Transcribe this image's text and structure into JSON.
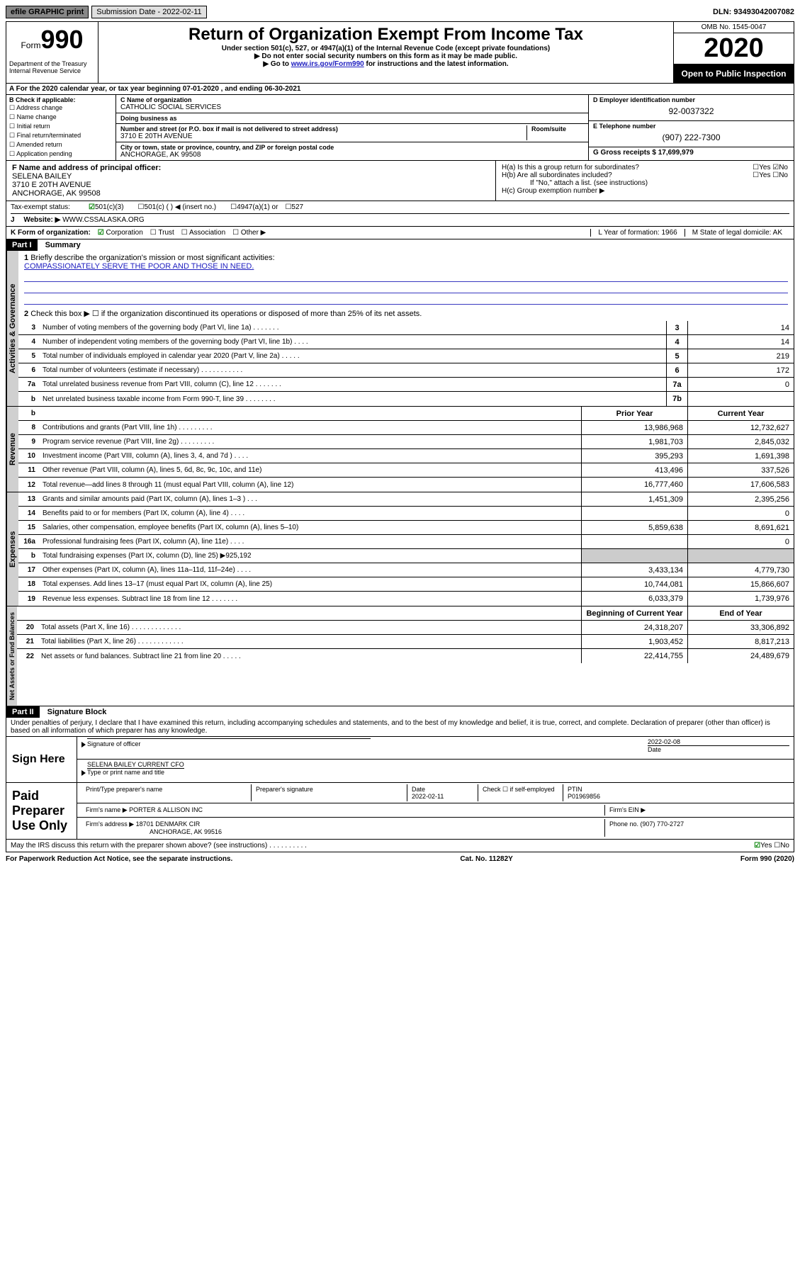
{
  "topbar": {
    "efile": "efile GRAPHIC print",
    "submission_label": "Submission Date - 2022-02-11",
    "dln": "DLN: 93493042007082"
  },
  "header": {
    "form_prefix": "Form",
    "form_number": "990",
    "dept": "Department of the Treasury\nInternal Revenue Service",
    "title": "Return of Organization Exempt From Income Tax",
    "subtitle": "Under section 501(c), 527, or 4947(a)(1) of the Internal Revenue Code (except private foundations)",
    "note1": "▶ Do not enter social security numbers on this form as it may be made public.",
    "note2_pre": "▶ Go to ",
    "note2_link": "www.irs.gov/Form990",
    "note2_post": " for instructions and the latest information.",
    "omb": "OMB No. 1545-0047",
    "year": "2020",
    "open_public": "Open to Public Inspection"
  },
  "period": {
    "line_a": "A For the 2020 calendar year, or tax year beginning 07-01-2020   , and ending 06-30-2021"
  },
  "box_b": {
    "label": "B Check if applicable:",
    "items": [
      "Address change",
      "Name change",
      "Initial return",
      "Final return/terminated",
      "Amended return",
      "Application pending"
    ]
  },
  "box_c": {
    "name_label": "C Name of organization",
    "name": "CATHOLIC SOCIAL SERVICES",
    "dba_label": "Doing business as",
    "dba": "",
    "street_label": "Number and street (or P.O. box if mail is not delivered to street address)",
    "room_label": "Room/suite",
    "street": "3710 E 20TH AVENUE",
    "city_label": "City or town, state or province, country, and ZIP or foreign postal code",
    "city": "ANCHORAGE, AK  99508"
  },
  "box_d": {
    "ein_label": "D Employer identification number",
    "ein": "92-0037322",
    "phone_label": "E Telephone number",
    "phone": "(907) 222-7300",
    "gross_label": "G Gross receipts $ 17,699,979"
  },
  "box_f": {
    "label": "F Name and address of principal officer:",
    "name": "SELENA BAILEY",
    "street": "3710 E 20TH AVENUE",
    "city": "ANCHORAGE, AK  99508"
  },
  "box_h": {
    "a": "H(a)  Is this a group return for subordinates?",
    "b": "H(b)  Are all subordinates included?",
    "b_note": "If \"No,\" attach a list. (see instructions)",
    "c": "H(c)  Group exemption number ▶",
    "yes": "Yes",
    "no": "No"
  },
  "tax_exempt": {
    "label": "Tax-exempt status:",
    "opt1": "501(c)(3)",
    "opt2": "501(c) (  ) ◀ (insert no.)",
    "opt3": "4947(a)(1) or",
    "opt4": "527"
  },
  "website": {
    "label_j": "J",
    "label": "Website: ▶",
    "value": "WWW.CSSALASKA.ORG"
  },
  "box_k": {
    "label": "K Form of organization:",
    "corp": "Corporation",
    "trust": "Trust",
    "assoc": "Association",
    "other": "Other ▶"
  },
  "box_l": {
    "label": "L Year of formation: 1966"
  },
  "box_m": {
    "label": "M State of legal domicile: AK"
  },
  "part1": {
    "header": "Part I",
    "title": "Summary",
    "q1": "Briefly describe the organization's mission or most significant activities:",
    "mission": "COMPASSIONATELY SERVE THE POOR AND THOSE IN NEED.",
    "q2": "Check this box ▶ ☐  if the organization discontinued its operations or disposed of more than 25% of its net assets.",
    "lines": [
      {
        "n": "3",
        "d": "Number of voting members of the governing body (Part VI, line 1a)   .   .   .   .   .   .   .",
        "b": "3",
        "v": "14"
      },
      {
        "n": "4",
        "d": "Number of independent voting members of the governing body (Part VI, line 1b)   .   .   .   .",
        "b": "4",
        "v": "14"
      },
      {
        "n": "5",
        "d": "Total number of individuals employed in calendar year 2020 (Part V, line 2a)   .   .   .   .   .",
        "b": "5",
        "v": "219"
      },
      {
        "n": "6",
        "d": "Total number of volunteers (estimate if necessary)   .   .   .   .   .   .   .   .   .   .   .",
        "b": "6",
        "v": "172"
      },
      {
        "n": "7a",
        "d": "Total unrelated business revenue from Part VIII, column (C), line 12   .   .   .   .   .   .   .",
        "b": "7a",
        "v": "0"
      },
      {
        "n": "b",
        "d": "Net unrelated business taxable income from Form 990-T, line 39   .   .   .   .   .   .   .   .",
        "b": "7b",
        "v": ""
      }
    ],
    "tab_gov": "Activities & Governance"
  },
  "revenue": {
    "tab": "Revenue",
    "header_prior": "Prior Year",
    "header_current": "Current Year",
    "lines": [
      {
        "n": "8",
        "d": "Contributions and grants (Part VIII, line 1h)   .   .   .   .   .   .   .   .   .",
        "p": "13,986,968",
        "c": "12,732,627"
      },
      {
        "n": "9",
        "d": "Program service revenue (Part VIII, line 2g)   .   .   .   .   .   .   .   .   .",
        "p": "1,981,703",
        "c": "2,845,032"
      },
      {
        "n": "10",
        "d": "Investment income (Part VIII, column (A), lines 3, 4, and 7d )   .   .   .   .",
        "p": "395,293",
        "c": "1,691,398"
      },
      {
        "n": "11",
        "d": "Other revenue (Part VIII, column (A), lines 5, 6d, 8c, 9c, 10c, and 11e)",
        "p": "413,496",
        "c": "337,526"
      },
      {
        "n": "12",
        "d": "Total revenue—add lines 8 through 11 (must equal Part VIII, column (A), line 12)",
        "p": "16,777,460",
        "c": "17,606,583"
      }
    ]
  },
  "expenses": {
    "tab": "Expenses",
    "lines": [
      {
        "n": "13",
        "d": "Grants and similar amounts paid (Part IX, column (A), lines 1–3 )   .   .   .",
        "p": "1,451,309",
        "c": "2,395,256"
      },
      {
        "n": "14",
        "d": "Benefits paid to or for members (Part IX, column (A), line 4)   .   .   .   .",
        "p": "",
        "c": "0"
      },
      {
        "n": "15",
        "d": "Salaries, other compensation, employee benefits (Part IX, column (A), lines 5–10)",
        "p": "5,859,638",
        "c": "8,691,621"
      },
      {
        "n": "16a",
        "d": "Professional fundraising fees (Part IX, column (A), line 11e)   .   .   .   .",
        "p": "",
        "c": "0"
      },
      {
        "n": "b",
        "d": "Total fundraising expenses (Part IX, column (D), line 25) ▶925,192",
        "p": null,
        "c": null
      },
      {
        "n": "17",
        "d": "Other expenses (Part IX, column (A), lines 11a–11d, 11f–24e)   .   .   .   .",
        "p": "3,433,134",
        "c": "4,779,730"
      },
      {
        "n": "18",
        "d": "Total expenses. Add lines 13–17 (must equal Part IX, column (A), line 25)",
        "p": "10,744,081",
        "c": "15,866,607"
      },
      {
        "n": "19",
        "d": "Revenue less expenses. Subtract line 18 from line 12   .   .   .   .   .   .   .",
        "p": "6,033,379",
        "c": "1,739,976"
      }
    ]
  },
  "netassets": {
    "tab": "Net Assets or Fund Balances",
    "header_begin": "Beginning of Current Year",
    "header_end": "End of Year",
    "lines": [
      {
        "n": "20",
        "d": "Total assets (Part X, line 16)   .   .   .   .   .   .   .   .   .   .   .   .   .",
        "p": "24,318,207",
        "c": "33,306,892"
      },
      {
        "n": "21",
        "d": "Total liabilities (Part X, line 26)   .   .   .   .   .   .   .   .   .   .   .   .",
        "p": "1,903,452",
        "c": "8,817,213"
      },
      {
        "n": "22",
        "d": "Net assets or fund balances. Subtract line 21 from line 20   .   .   .   .   .",
        "p": "22,414,755",
        "c": "24,489,679"
      }
    ]
  },
  "part2": {
    "header": "Part II",
    "title": "Signature Block",
    "declaration": "Under penalties of perjury, I declare that I have examined this return, including accompanying schedules and statements, and to the best of my knowledge and belief, it is true, correct, and complete. Declaration of preparer (other than officer) is based on all information of which preparer has any knowledge."
  },
  "sign": {
    "label": "Sign Here",
    "sig_officer": "Signature of officer",
    "date_label": "Date",
    "date": "2022-02-08",
    "name": "SELENA BAILEY  CURRENT CFO",
    "name_label": "Type or print name and title"
  },
  "preparer": {
    "label": "Paid Preparer Use Only",
    "print_label": "Print/Type preparer's name",
    "sig_label": "Preparer's signature",
    "date_label": "Date",
    "date": "2022-02-11",
    "check_label": "Check ☐ if self-employed",
    "ptin_label": "PTIN",
    "ptin": "P01969856",
    "firm_name_label": "Firm's name    ▶",
    "firm_name": "PORTER & ALLISON INC",
    "firm_ein_label": "Firm's EIN ▶",
    "firm_addr_label": "Firm's address ▶",
    "firm_addr1": "18701 DENMARK CIR",
    "firm_addr2": "ANCHORAGE, AK  99516",
    "phone_label": "Phone no. (907) 770-2727"
  },
  "irs_discuss": {
    "q": "May the IRS discuss this return with the preparer shown above? (see instructions)   .   .   .   .   .   .   .   .   .   .",
    "yes": "Yes",
    "no": "No"
  },
  "footer": {
    "left": "For Paperwork Reduction Act Notice, see the separate instructions.",
    "mid": "Cat. No. 11282Y",
    "right": "Form 990 (2020)"
  }
}
